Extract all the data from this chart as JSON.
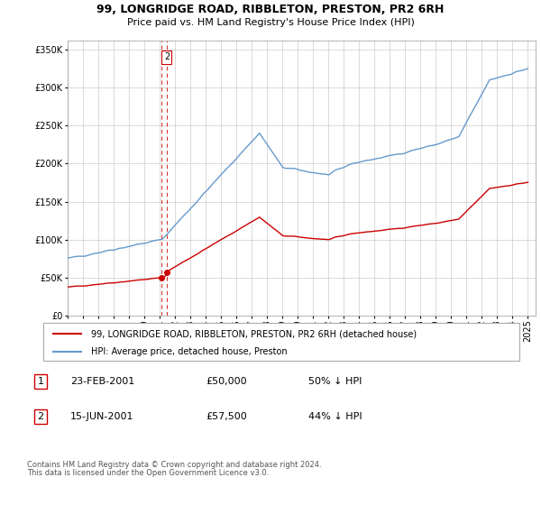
{
  "title": "99, LONGRIDGE ROAD, RIBBLETON, PRESTON, PR2 6RH",
  "subtitle": "Price paid vs. HM Land Registry's House Price Index (HPI)",
  "legend_line1": "99, LONGRIDGE ROAD, RIBBLETON, PRESTON, PR2 6RH (detached house)",
  "legend_line2": "HPI: Average price, detached house, Preston",
  "footer1": "Contains HM Land Registry data © Crown copyright and database right 2024.",
  "footer2": "This data is licensed under the Open Government Licence v3.0.",
  "table": [
    {
      "num": "1",
      "date": "23-FEB-2001",
      "price": "£50,000",
      "hpi": "50% ↓ HPI"
    },
    {
      "num": "2",
      "date": "15-JUN-2001",
      "price": "£57,500",
      "hpi": "44% ↓ HPI"
    }
  ],
  "sale1_date": 2001.14,
  "sale1_price": 50000,
  "sale2_date": 2001.46,
  "sale2_price": 57500,
  "hpi_color": "#6699cc",
  "price_color": "#cc0000",
  "dashed_color": "#cc0000",
  "yticks": [
    0,
    50000,
    100000,
    150000,
    200000,
    250000,
    300000,
    350000
  ],
  "ylim_max": 362000,
  "ylim_min": 0,
  "xlim_min": 1995.0,
  "xlim_max": 2025.5
}
